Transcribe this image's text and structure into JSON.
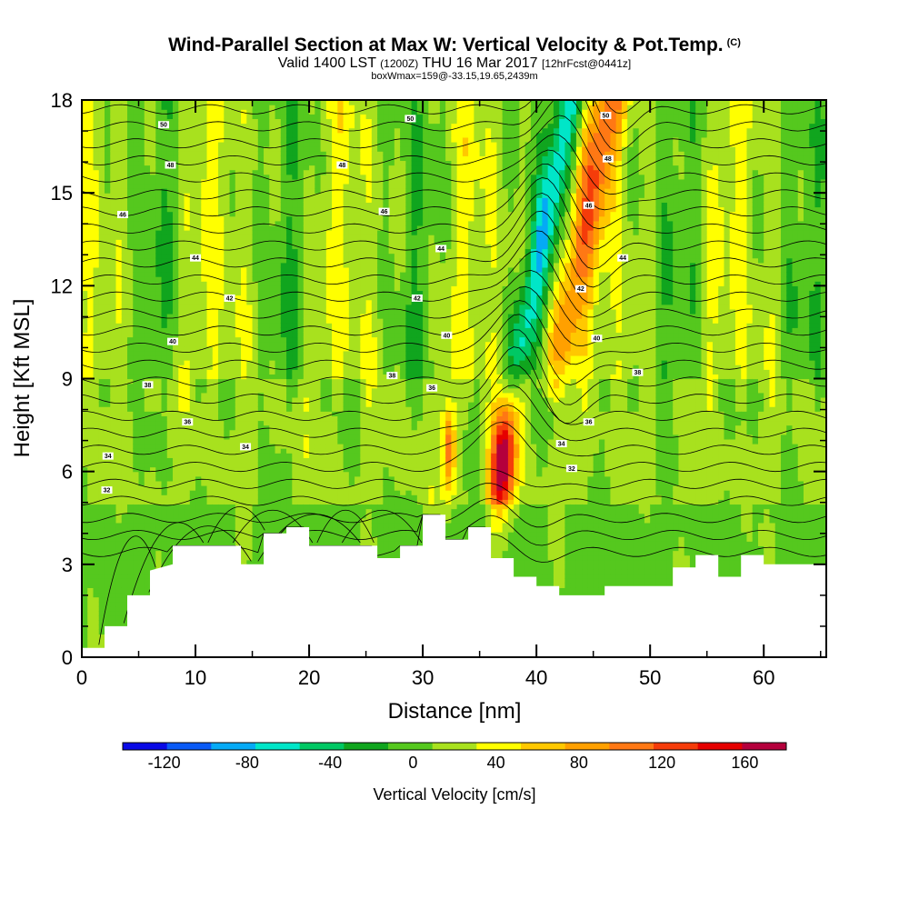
{
  "title": {
    "main": "Wind-Parallel Section at Max W: Vertical Velocity & Pot.Temp.",
    "copyright": "(C)",
    "valid_prefix": "Valid 1400 LST",
    "utc": "(1200Z)",
    "valid_date": "THU 16 Mar 2017",
    "forecast": "[12hrFcst@0441z]",
    "boxinfo": "boxWmax=159@-33.15,19.65,2439m"
  },
  "chart_data": {
    "type": "heatmap",
    "xlabel": "Distance [nm]",
    "ylabel": "Height [Kft MSL]",
    "xlim": [
      0,
      65.5
    ],
    "ylim": [
      0,
      18
    ],
    "x_ticks": [
      "0",
      "10",
      "20",
      "30",
      "40",
      "50",
      "60"
    ],
    "y_ticks": [
      "0",
      "3",
      "6",
      "9",
      "12",
      "15",
      "18"
    ],
    "colorbar": {
      "title": "Vertical Velocity [cm/s]",
      "range": [
        -140,
        180
      ],
      "step": 20,
      "tick_labels": [
        "-120",
        "-80",
        "-40",
        "0",
        "40",
        "80",
        "120",
        "160"
      ],
      "colors": [
        "#0a0ae6",
        "#0a5af5",
        "#05aaf5",
        "#00e6c8",
        "#00c864",
        "#10a51e",
        "#55c81e",
        "#a8e11e",
        "#ffff00",
        "#ffc800",
        "#ffa000",
        "#ff7814",
        "#f53c0a",
        "#e60000",
        "#b4003c"
      ]
    },
    "terrain_profile_kft": [
      [
        0,
        0.3
      ],
      [
        2,
        0.3
      ],
      [
        2,
        1
      ],
      [
        4,
        1
      ],
      [
        4,
        2
      ],
      [
        6,
        2
      ],
      [
        6,
        2.8
      ],
      [
        8,
        3
      ],
      [
        8,
        3.6
      ],
      [
        10,
        3.6
      ],
      [
        14,
        3.6
      ],
      [
        14,
        3
      ],
      [
        16,
        3
      ],
      [
        16,
        4
      ],
      [
        18,
        4
      ],
      [
        18,
        4.2
      ],
      [
        20,
        4.2
      ],
      [
        20,
        3.6
      ],
      [
        22,
        3.6
      ],
      [
        26,
        3.6
      ],
      [
        26,
        3.2
      ],
      [
        28,
        3.2
      ],
      [
        28,
        3.6
      ],
      [
        30,
        3.6
      ],
      [
        30,
        4.6
      ],
      [
        32,
        4.6
      ],
      [
        32,
        3.8
      ],
      [
        34,
        3.8
      ],
      [
        34,
        4.2
      ],
      [
        36,
        4.2
      ],
      [
        36,
        3.2
      ],
      [
        38,
        3.2
      ],
      [
        38,
        2.6
      ],
      [
        40,
        2.6
      ],
      [
        40,
        2.3
      ],
      [
        42,
        2.3
      ],
      [
        42,
        2
      ],
      [
        46,
        2
      ],
      [
        46,
        2.3
      ],
      [
        48,
        2.3
      ],
      [
        50,
        2.3
      ],
      [
        52,
        2.3
      ],
      [
        52,
        2.9
      ],
      [
        54,
        2.9
      ],
      [
        54,
        3.3
      ],
      [
        56,
        3.3
      ],
      [
        56,
        2.6
      ],
      [
        58,
        2.6
      ],
      [
        58,
        3.3
      ],
      [
        60,
        3.3
      ],
      [
        60,
        3
      ],
      [
        64,
        3
      ],
      [
        65.5,
        3
      ]
    ],
    "updrafts": [
      {
        "x": 37,
        "z": 6.2,
        "peak": 159
      },
      {
        "x": 32.3,
        "z": 6.8,
        "peak": 90
      },
      {
        "x": 42,
        "z": 12.5,
        "peak": 80
      },
      {
        "x": 38,
        "z": 16,
        "peak": 60
      }
    ],
    "downdrafts": [
      {
        "x": 37.5,
        "z": 12,
        "peak": -60
      },
      {
        "x": 42,
        "z": 16,
        "peak": -40
      }
    ],
    "theta_contour_labels": [
      {
        "text": "50",
        "x": 7.2,
        "z": 17.2
      },
      {
        "text": "48",
        "x": 7.8,
        "z": 15.9
      },
      {
        "text": "46",
        "x": 3.6,
        "z": 14.3
      },
      {
        "text": "44",
        "x": 10,
        "z": 12.9
      },
      {
        "text": "42",
        "x": 13,
        "z": 11.6
      },
      {
        "text": "40",
        "x": 8,
        "z": 10.2
      },
      {
        "text": "38",
        "x": 5.8,
        "z": 8.8
      },
      {
        "text": "36",
        "x": 9.3,
        "z": 7.6
      },
      {
        "text": "34",
        "x": 2.3,
        "z": 6.5
      },
      {
        "text": "34",
        "x": 14.4,
        "z": 6.8
      },
      {
        "text": "32",
        "x": 2.2,
        "z": 5.4
      },
      {
        "text": "50",
        "x": 28.9,
        "z": 17.4
      },
      {
        "text": "48",
        "x": 22.9,
        "z": 15.9
      },
      {
        "text": "46",
        "x": 26.6,
        "z": 14.4
      },
      {
        "text": "44",
        "x": 31.6,
        "z": 13.2
      },
      {
        "text": "42",
        "x": 29.5,
        "z": 11.6
      },
      {
        "text": "40",
        "x": 32.1,
        "z": 10.4
      },
      {
        "text": "38",
        "x": 27.3,
        "z": 9.1
      },
      {
        "text": "36",
        "x": 30.8,
        "z": 8.7
      },
      {
        "text": "50",
        "x": 46.1,
        "z": 17.5
      },
      {
        "text": "48",
        "x": 46.3,
        "z": 16.1
      },
      {
        "text": "46",
        "x": 44.6,
        "z": 14.6
      },
      {
        "text": "44",
        "x": 47.6,
        "z": 12.9
      },
      {
        "text": "42",
        "x": 43.9,
        "z": 11.9
      },
      {
        "text": "40",
        "x": 45.3,
        "z": 10.3
      },
      {
        "text": "38",
        "x": 48.9,
        "z": 9.2
      },
      {
        "text": "36",
        "x": 44.6,
        "z": 7.6
      },
      {
        "text": "34",
        "x": 42.2,
        "z": 6.9
      },
      {
        "text": "32",
        "x": 43.1,
        "z": 6.1
      }
    ]
  }
}
